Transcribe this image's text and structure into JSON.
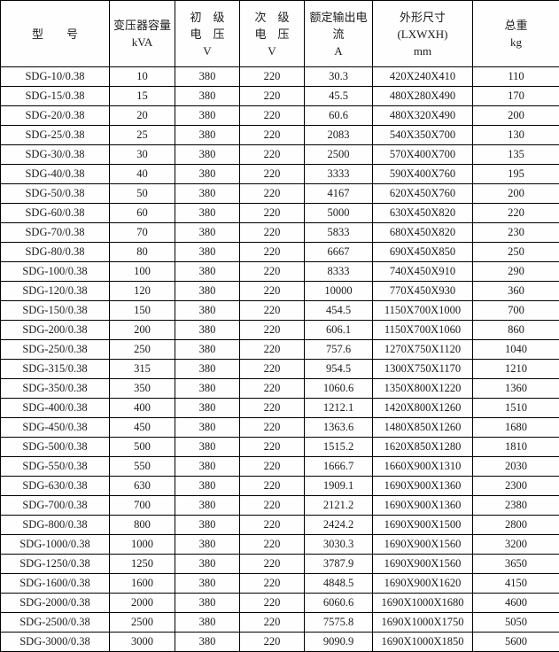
{
  "table": {
    "headers": [
      {
        "id": "model",
        "lines": [
          "型　　号"
        ]
      },
      {
        "id": "capacity",
        "lines": [
          "变压器容量",
          "kVA"
        ]
      },
      {
        "id": "primary-voltage",
        "lines": [
          "初　级",
          "电　压",
          "V"
        ]
      },
      {
        "id": "secondary-voltage",
        "lines": [
          "次　级",
          "电　压",
          "V"
        ]
      },
      {
        "id": "rated-current",
        "lines": [
          "额定输出电",
          "流",
          "A"
        ]
      },
      {
        "id": "dimensions",
        "lines": [
          "外形尺寸",
          "(LXWXH)",
          "mm"
        ]
      },
      {
        "id": "weight",
        "lines": [
          "总重",
          "kg"
        ]
      }
    ],
    "rows": [
      [
        "SDG-10/0.38",
        "10",
        "380",
        "220",
        "30.3",
        "420X240X410",
        "110"
      ],
      [
        "SDG-15/0.38",
        "15",
        "380",
        "220",
        "45.5",
        "480X280X490",
        "170"
      ],
      [
        "SDG-20/0.38",
        "20",
        "380",
        "220",
        "60.6",
        "480X320X490",
        "200"
      ],
      [
        "SDG-25/0.38",
        "25",
        "380",
        "220",
        "2083",
        "540X350X700",
        "130"
      ],
      [
        "SDG-30/0.38",
        "30",
        "380",
        "220",
        "2500",
        "570X400X700",
        "135"
      ],
      [
        "SDG-40/0.38",
        "40",
        "380",
        "220",
        "3333",
        "590X400X760",
        "195"
      ],
      [
        "SDG-50/0.38",
        "50",
        "380",
        "220",
        "4167",
        "620X450X760",
        "200"
      ],
      [
        "SDG-60/0.38",
        "60",
        "380",
        "220",
        "5000",
        "630X450X820",
        "220"
      ],
      [
        "SDG-70/0.38",
        "70",
        "380",
        "220",
        "5833",
        "680X450X820",
        "230"
      ],
      [
        "SDG-80/0.38",
        "80",
        "380",
        "220",
        "6667",
        "690X450X850",
        "250"
      ],
      [
        "SDG-100/0.38",
        "100",
        "380",
        "220",
        "8333",
        "740X450X910",
        "290"
      ],
      [
        "SDG-120/0.38",
        "120",
        "380",
        "220",
        "10000",
        "770X450X930",
        "360"
      ],
      [
        "SDG-150/0.38",
        "150",
        "380",
        "220",
        "454.5",
        "1150X700X1000",
        "700"
      ],
      [
        "SDG-200/0.38",
        "200",
        "380",
        "220",
        "606.1",
        "1150X700X1060",
        "860"
      ],
      [
        "SDG-250/0.38",
        "250",
        "380",
        "220",
        "757.6",
        "1270X750X1120",
        "1040"
      ],
      [
        "SDG-315/0.38",
        "315",
        "380",
        "220",
        "954.5",
        "1300X750X1170",
        "1210"
      ],
      [
        "SDG-350/0.38",
        "350",
        "380",
        "220",
        "1060.6",
        "1350X800X1220",
        "1360"
      ],
      [
        "SDG-400/0.38",
        "400",
        "380",
        "220",
        "1212.1",
        "1420X800X1260",
        "1510"
      ],
      [
        "SDG-450/0.38",
        "450",
        "380",
        "220",
        "1363.6",
        "1480X850X1260",
        "1680"
      ],
      [
        "SDG-500/0.38",
        "500",
        "380",
        "220",
        "1515.2",
        "1620X850X1280",
        "1810"
      ],
      [
        "SDG-550/0.38",
        "550",
        "380",
        "220",
        "1666.7",
        "1660X900X1310",
        "2030"
      ],
      [
        "SDG-630/0.38",
        "630",
        "380",
        "220",
        "1909.1",
        "1690X900X1360",
        "2300"
      ],
      [
        "SDG-700/0.38",
        "700",
        "380",
        "220",
        "2121.2",
        "1690X900X1360",
        "2380"
      ],
      [
        "SDG-800/0.38",
        "800",
        "380",
        "220",
        "2424.2",
        "1690X900X1500",
        "2800"
      ],
      [
        "SDG-1000/0.38",
        "1000",
        "380",
        "220",
        "3030.3",
        "1690X900X1560",
        "3200"
      ],
      [
        "SDG-1250/0.38",
        "1250",
        "380",
        "220",
        "3787.9",
        "1690X900X1560",
        "3650"
      ],
      [
        "SDG-1600/0.38",
        "1600",
        "380",
        "220",
        "4848.5",
        "1690X900X1620",
        "4150"
      ],
      [
        "SDG-2000/0.38",
        "2000",
        "380",
        "220",
        "6060.6",
        "1690X1000X1680",
        "4600"
      ],
      [
        "SDG-2500/0.38",
        "2500",
        "380",
        "220",
        "7575.8",
        "1690X1000X1750",
        "5050"
      ],
      [
        "SDG-3000/0.38",
        "3000",
        "380",
        "220",
        "9090.9",
        "1690X1000X1850",
        "5600"
      ]
    ]
  }
}
